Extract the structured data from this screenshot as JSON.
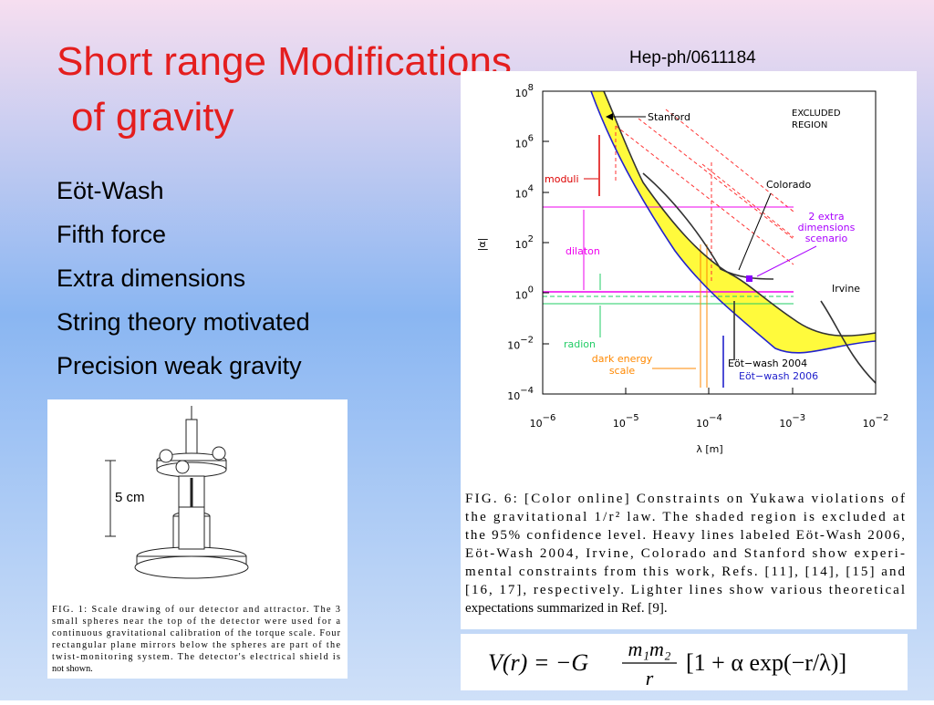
{
  "header": {
    "title": [
      "Short range Modifications",
      "of gravity"
    ],
    "reference": "Hep-ph/0611184"
  },
  "bullets": [
    "Eöt-Wash",
    "Fifth force",
    "Extra dimensions",
    "String theory motivated",
    "Precision weak gravity"
  ],
  "figure1": {
    "scale_label": "5 cm",
    "caption": [
      "FIG. 1: Scale drawing of our detector and attractor. The 3",
      "small spheres near the top of the detector were used for a",
      "continuous gravitational calibration of the torque scale. Four",
      "rectangular plane mirrors below the spheres are part of the",
      "twist-monitoring system. The detector's electrical shield is",
      "not shown."
    ]
  },
  "figure6": {
    "y_axis_label": "|α|",
    "x_axis_label": "λ [m]",
    "y_ticks": [
      {
        "base": "10",
        "exp": "8"
      },
      {
        "base": "10",
        "exp": "6"
      },
      {
        "base": "10",
        "exp": "4"
      },
      {
        "base": "10",
        "exp": "2"
      },
      {
        "base": "10",
        "exp": "0"
      },
      {
        "base": "10",
        "exp": "−2"
      },
      {
        "base": "10",
        "exp": "−4"
      }
    ],
    "x_ticks": [
      {
        "base": "10",
        "exp": "−6"
      },
      {
        "base": "10",
        "exp": "−5"
      },
      {
        "base": "10",
        "exp": "−4"
      },
      {
        "base": "10",
        "exp": "−3"
      },
      {
        "base": "10",
        "exp": "−2"
      }
    ],
    "annotations": {
      "stanford": "Stanford",
      "excluded": [
        "EXCLUDED",
        "REGION"
      ],
      "moduli": "moduli",
      "colorado": "Colorado",
      "extra_dimensions": [
        "2 extra",
        "dimensions",
        "scenario"
      ],
      "dilaton": "dilaton",
      "irvine": "Irvine",
      "radion": "radion",
      "dark_energy": [
        "dark energy",
        "scale"
      ],
      "eotwash2004": "Eöt−wash 2004",
      "eotwash2006": "Eöt−wash 2006"
    },
    "caption": [
      "FIG. 6: [Color online] Constraints on Yukawa violations of",
      "the gravitational 1/r² law. The shaded region is excluded at",
      "the 95% confidence level. Heavy lines labeled Eöt-Wash 2006,",
      "Eöt-Wash 2004, Irvine, Colorado and Stanford show experi-",
      "mental constraints from this work, Refs. [11], [14], [15] and",
      "[16, 17], respectively. Lighter lines show various theoretical",
      "expectations summarized in Ref. [9]."
    ]
  },
  "formula": {
    "lhs": "V(r) = −G",
    "numerator": "m₁m₂",
    "denominator": "r",
    "bracket": "[1 + α exp(−r/λ)]"
  }
}
